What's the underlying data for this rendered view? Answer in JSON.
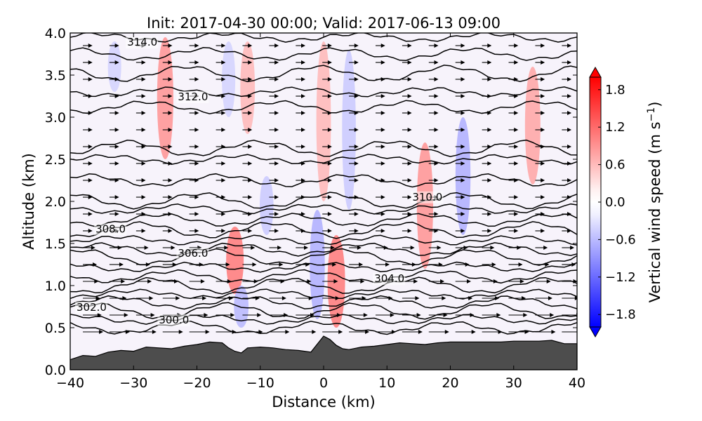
{
  "chart_data": {
    "type": "contour",
    "title": "Init: 2017-04-30 00:00; Valid: 2017-06-13 09:00",
    "xlabel": "Distance (km)",
    "ylabel": "Altitude (km)",
    "xlim": [
      -40,
      40
    ],
    "ylim": [
      0.0,
      4.0
    ],
    "x_ticks": [
      "−40",
      "−30",
      "−20",
      "−10",
      "0",
      "10",
      "20",
      "30",
      "40"
    ],
    "y_ticks": [
      "0.0",
      "0.5",
      "1.0",
      "1.5",
      "2.0",
      "2.5",
      "3.0",
      "3.5",
      "4.0"
    ],
    "colorbar": {
      "label_prefix": "Vertical wind speed (m s",
      "label_exp": "−1",
      "label_suffix": ")",
      "range": [
        -2.0,
        2.0
      ],
      "ticks": [
        "1.8",
        "1.2",
        "0.6",
        "0.0",
        "−0.6",
        "−1.2",
        "−1.8"
      ],
      "positive_color": "#ff0000",
      "negative_color": "#0000ff"
    },
    "contour_labels": [
      {
        "text": "314.0",
        "x": -31,
        "y": 3.85
      },
      {
        "text": "312.0",
        "x": -23,
        "y": 3.2
      },
      {
        "text": "310.0",
        "x": 14,
        "y": 2.01
      },
      {
        "text": "308.0",
        "x": -36,
        "y": 1.63
      },
      {
        "text": "306.0",
        "x": -23,
        "y": 1.34
      },
      {
        "text": "304.0",
        "x": 8,
        "y": 1.04
      },
      {
        "text": "302.0",
        "x": -39,
        "y": 0.7
      },
      {
        "text": "300.0",
        "x": -26,
        "y": 0.55
      }
    ],
    "terrain": {
      "fill_color": "#4d4d4d",
      "x": [
        -40,
        -38,
        -36,
        -34,
        -32,
        -30,
        -28,
        -26,
        -24,
        -22,
        -20,
        -18,
        -16,
        -15,
        -14,
        -13,
        -12,
        -10,
        -8,
        -6,
        -4,
        -2,
        0,
        1,
        2,
        3,
        4,
        6,
        8,
        10,
        12,
        14,
        16,
        18,
        20,
        22,
        24,
        26,
        28,
        30,
        32,
        34,
        36,
        38,
        40
      ],
      "y": [
        0.12,
        0.17,
        0.16,
        0.21,
        0.23,
        0.22,
        0.27,
        0.26,
        0.25,
        0.28,
        0.3,
        0.33,
        0.32,
        0.26,
        0.22,
        0.2,
        0.26,
        0.27,
        0.26,
        0.24,
        0.23,
        0.21,
        0.4,
        0.36,
        0.29,
        0.25,
        0.24,
        0.27,
        0.28,
        0.3,
        0.32,
        0.31,
        0.3,
        0.32,
        0.33,
        0.33,
        0.33,
        0.33,
        0.33,
        0.34,
        0.34,
        0.34,
        0.35,
        0.31,
        0.31
      ]
    },
    "isentrope_levels": [
      3.95,
      3.75,
      3.52,
      3.3,
      3.12,
      2.63,
      2.5,
      2.25,
      2.01,
      1.91,
      1.78,
      1.66,
      1.54,
      1.43,
      1.34,
      1.22,
      1.11,
      1.0,
      0.9,
      0.8,
      0.7,
      0.6,
      0.5
    ],
    "vertical_wind_bands": [
      {
        "x": -25,
        "y0": 2.5,
        "y1": 3.95,
        "w": 1.2
      },
      {
        "x": -14,
        "y0": 0.9,
        "y1": 1.7,
        "w": 1.5
      },
      {
        "x": -12,
        "y0": 2.8,
        "y1": 3.9,
        "w": 0.8
      },
      {
        "x": 0,
        "y0": 2.0,
        "y1": 3.9,
        "w": 0.8
      },
      {
        "x": 2,
        "y0": 0.5,
        "y1": 1.6,
        "w": 1.5
      },
      {
        "x": 16,
        "y0": 1.2,
        "y1": 2.7,
        "w": 1.2
      },
      {
        "x": 33,
        "y0": 2.2,
        "y1": 3.6,
        "w": 1.0
      },
      {
        "x": -13,
        "y0": 0.5,
        "y1": 1.0,
        "w": -0.8
      },
      {
        "x": -9,
        "y0": 1.6,
        "y1": 2.3,
        "w": -0.6
      },
      {
        "x": -1,
        "y0": 0.6,
        "y1": 1.9,
        "w": -0.9
      },
      {
        "x": 4,
        "y0": 1.9,
        "y1": 3.8,
        "w": -0.6
      },
      {
        "x": 22,
        "y0": 1.6,
        "y1": 3.0,
        "w": -0.9
      },
      {
        "x": -15,
        "y0": 3.0,
        "y1": 3.9,
        "w": -0.5
      },
      {
        "x": -33,
        "y0": 3.3,
        "y1": 3.9,
        "w": -0.5
      }
    ]
  }
}
